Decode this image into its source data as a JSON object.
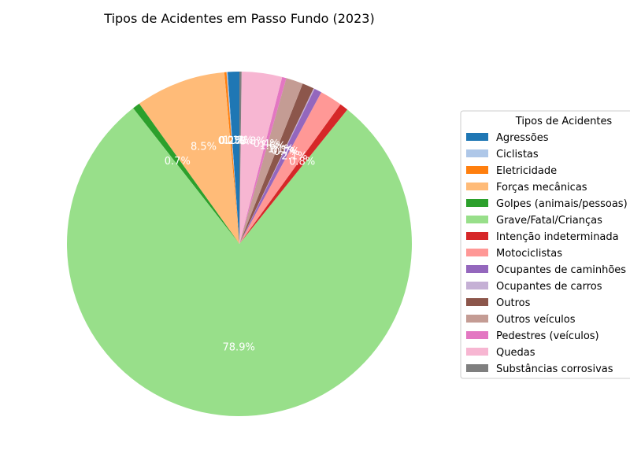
{
  "chart_data": {
    "type": "pie",
    "title": "Tipos de Acidentes em Passo Fundo (2023)",
    "legend_title": "Tipos de Acidentes",
    "legend_position": "right",
    "start_angle_deg": 90,
    "direction": "counterclockwise",
    "slices": [
      {
        "label": "Agressões",
        "value": 1.1,
        "pct_label": "1.1%",
        "color": "#1f77b4"
      },
      {
        "label": "Ciclistas",
        "value": 0.1,
        "pct_label": "0.1%",
        "color": "#aec7e8"
      },
      {
        "label": "Eletricidade",
        "value": 0.2,
        "pct_label": "0.2%",
        "color": "#ff7f0e"
      },
      {
        "label": "Forças mecânicas",
        "value": 8.5,
        "pct_label": "8.5%",
        "color": "#ffbb78"
      },
      {
        "label": "Golpes (animais/pessoas)",
        "value": 0.7,
        "pct_label": "0.7%",
        "color": "#2ca02c"
      },
      {
        "label": "Grave/Fatal/Crianças",
        "value": 78.9,
        "pct_label": "78.9%",
        "color": "#98df8a"
      },
      {
        "label": "Intenção indeterminada",
        "value": 0.8,
        "pct_label": "0.8%",
        "color": "#d62728"
      },
      {
        "label": "Motociclistas",
        "value": 2.1,
        "pct_label": "2.1%",
        "color": "#ff9896"
      },
      {
        "label": "Ocupantes de caminhões",
        "value": 0.7,
        "pct_label": "0.7%",
        "color": "#9467bd"
      },
      {
        "label": "Ocupantes de carros",
        "value": 0.1,
        "pct_label": "0.1%",
        "color": "#c5b0d5"
      },
      {
        "label": "Outros",
        "value": 1.1,
        "pct_label": "1.1%",
        "color": "#8c564b"
      },
      {
        "label": "Outros veículos",
        "value": 1.6,
        "pct_label": "1.6%",
        "color": "#c49c94"
      },
      {
        "label": "Pedestres (veículos)",
        "value": 0.4,
        "pct_label": "0.4%",
        "color": "#e377c2"
      },
      {
        "label": "Quedas",
        "value": 3.8,
        "pct_label": "3.8%",
        "color": "#f7b6d2"
      },
      {
        "label": "Substâncias corrosivas",
        "value": 0.2,
        "pct_label": "0.2%",
        "color": "#7f7f7f"
      }
    ]
  }
}
